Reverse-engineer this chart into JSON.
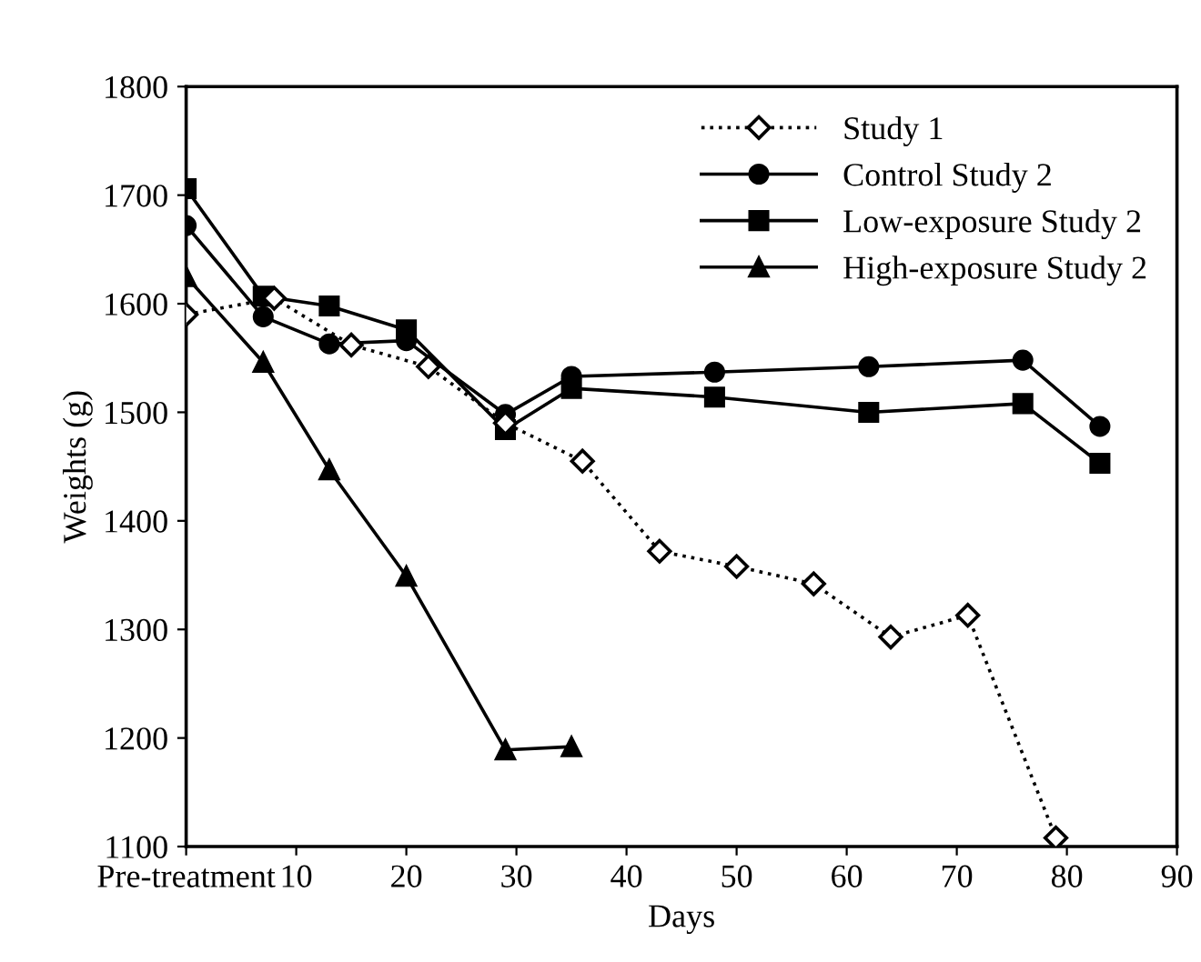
{
  "chart_data": {
    "type": "line",
    "xlabel": "Days",
    "ylabel": "Weights (g)",
    "xlim": [
      0,
      90
    ],
    "xticks": [
      {
        "value": 0,
        "label": "Pre-treatment"
      },
      10,
      20,
      30,
      40,
      50,
      60,
      70,
      80,
      90
    ],
    "ylim": [
      1100,
      1800
    ],
    "yticks": [
      1100,
      1200,
      1300,
      1400,
      1500,
      1600,
      1700,
      1800
    ],
    "grid": false,
    "legend": "top right",
    "series": [
      {
        "name": "Study 1",
        "color": "#000000",
        "marker": "diamond",
        "line_style": "dotted",
        "x": [
          0,
          8,
          15,
          22,
          29,
          36,
          43,
          50,
          57,
          64,
          71,
          79
        ],
        "values": [
          1590,
          1605,
          1562,
          1542,
          1490,
          1455,
          1372,
          1358,
          1342,
          1293,
          1313,
          1108
        ]
      },
      {
        "name": "Control Study 2",
        "color": "#000000",
        "marker": "circle",
        "line_style": "solid",
        "x": [
          0,
          7,
          13,
          20,
          29,
          35,
          48,
          62,
          76,
          83
        ],
        "values": [
          1672,
          1588,
          1563,
          1566,
          1498,
          1533,
          1537,
          1542,
          1548,
          1487
        ]
      },
      {
        "name": "Low-exposure Study 2",
        "color": "#000000",
        "marker": "square",
        "line_style": "solid",
        "x": [
          0,
          7,
          13,
          20,
          29,
          35,
          48,
          62,
          76,
          83
        ],
        "values": [
          1706,
          1607,
          1598,
          1576,
          1484,
          1522,
          1514,
          1500,
          1508,
          1453
        ]
      },
      {
        "name": "High-exposure Study 2",
        "color": "#000000",
        "marker": "triangle",
        "line_style": "solid",
        "x": [
          0,
          7,
          13,
          20,
          29,
          35
        ],
        "values": [
          1625,
          1546,
          1447,
          1349,
          1189,
          1192
        ]
      }
    ]
  }
}
